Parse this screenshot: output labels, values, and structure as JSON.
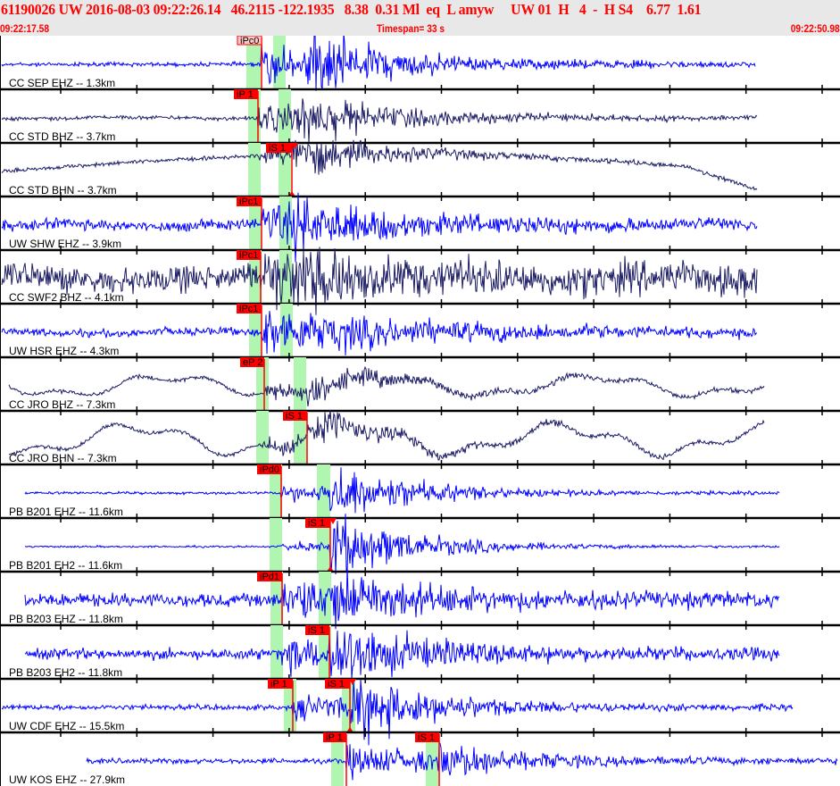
{
  "header": {
    "event_line": "61190026 UW 2016-08-03 09:22:26.14   46.2115 -122.1935   8.38  0.31 Ml  eq  L amyw     UW 01  H   4  -  H S4    6.77  1.61",
    "start_time": "09:22:17.58",
    "timespan": "Timespan=  33 s",
    "end_time": "09:22:50.98"
  },
  "colors": {
    "header_text": "#ff0000",
    "header_bg": "#e8e8e8",
    "trace_ehz": "#0000ff",
    "trace_bh": "#1c1c66",
    "pick": "#ff0000",
    "window": "#b0f5b0"
  },
  "chart_data": {
    "type": "line",
    "title": "",
    "xlabel": "",
    "ylabel": "",
    "x_range_s": [
      0,
      33
    ],
    "traces": [
      {
        "label": "CC SEP EHZ -- 1.3km",
        "picks": [
          "iPc0"
        ]
      },
      {
        "label": "CC STD BHZ -- 3.7km",
        "picks": [
          "iP 1"
        ]
      },
      {
        "label": "CC STD BHN -- 3.7km",
        "picks": [
          "iS 1"
        ]
      },
      {
        "label": "UW SHW EHZ -- 3.9km",
        "picks": [
          "iPc1"
        ]
      },
      {
        "label": "CC SWF2 BHZ -- 4.1km",
        "picks": [
          "iPc1"
        ]
      },
      {
        "label": "UW HSR EHZ -- 4.3km",
        "picks": [
          "iPc1"
        ]
      },
      {
        "label": "CC JRO BHZ -- 7.3km",
        "picks": [
          "eP 2"
        ]
      },
      {
        "label": "CC JRO BHN -- 7.3km",
        "picks": [
          "iS 1"
        ]
      },
      {
        "label": "PB B201 EHZ -- 11.6km",
        "picks": [
          "iPd0"
        ]
      },
      {
        "label": "PB B201 EH2 -- 11.6km",
        "picks": [
          "iS 1"
        ]
      },
      {
        "label": "PB B203 EHZ -- 11.8km",
        "picks": [
          "iPd1"
        ]
      },
      {
        "label": "PB B203 EH2 -- 11.8km",
        "picks": [
          "iS 1"
        ]
      },
      {
        "label": "UW CDF EHZ -- 15.5km",
        "picks": [
          "iP 1",
          "iS 1"
        ]
      },
      {
        "label": "UW KOS EHZ -- 27.9km",
        "picks": [
          "iP 1",
          "iS 1"
        ]
      }
    ]
  }
}
